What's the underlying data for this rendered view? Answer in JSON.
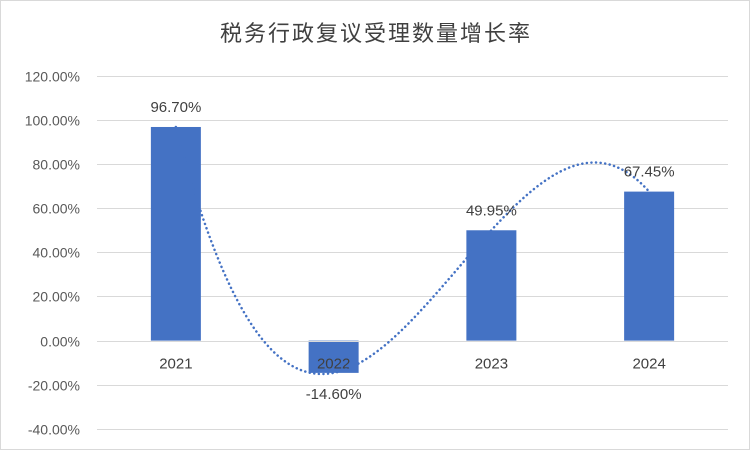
{
  "chart_data": {
    "type": "bar",
    "title": "税务行政复议受理数量增长率",
    "categories": [
      "2021",
      "2022",
      "2023",
      "2024"
    ],
    "series": [
      {
        "values": [
          96.7,
          -14.6,
          49.95,
          67.45
        ],
        "labels": [
          "96.70%",
          "-14.60%",
          "49.95%",
          "67.45%"
        ],
        "color": "#4472C4"
      }
    ],
    "trendline": {
      "type": "polynomial",
      "style": "dotted",
      "color": "#4472C4"
    },
    "ylim": [
      -40,
      120
    ],
    "yticks": [
      120,
      100,
      80,
      60,
      40,
      20,
      0,
      -20,
      -40
    ],
    "ytick_labels": [
      "120.00%",
      "100.00%",
      "80.00%",
      "60.00%",
      "40.00%",
      "20.00%",
      "0.00%",
      "-20.00%",
      "-40.00%"
    ],
    "xlabel": "",
    "ylabel": "",
    "grid": true,
    "legend": "none"
  }
}
